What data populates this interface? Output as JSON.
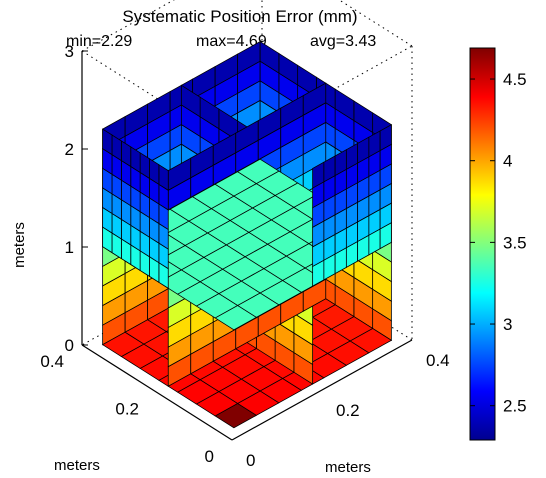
{
  "chart_data": {
    "type": "heatmap",
    "title": "Systematic Position Error (mm)",
    "subtitle": {
      "min": "min=2.29",
      "max": "max=4.69",
      "avg": "avg=3.43"
    },
    "stats": {
      "min": 2.29,
      "max": 4.69,
      "avg": 3.43
    },
    "zlabel": "meters",
    "xlabel": "meters",
    "ylabel": "meters",
    "z_ticks": [
      "0",
      "1",
      "2",
      "3"
    ],
    "x_ticks": [
      "0.4",
      "0.2",
      "0"
    ],
    "y_ticks": [
      "0",
      "0.2",
      "0.4"
    ],
    "xlim": [
      0,
      0.4
    ],
    "ylim": [
      0,
      0.4
    ],
    "zlim": [
      0,
      3
    ],
    "cube": {
      "z_range_m": [
        0,
        2.2
      ],
      "horizontal_slice_z_m": 1.0,
      "grid_cells_per_face_horizontal": 7,
      "grid_cells_vertical": 11,
      "error_by_height_mm": [
        {
          "z": 0.0,
          "value": 4.3
        },
        {
          "z": 0.2,
          "value": 4.1
        },
        {
          "z": 0.4,
          "value": 3.95
        },
        {
          "z": 0.6,
          "value": 3.8
        },
        {
          "z": 0.8,
          "value": 3.6
        },
        {
          "z": 1.0,
          "value": 3.35
        },
        {
          "z": 1.2,
          "value": 3.15
        },
        {
          "z": 1.4,
          "value": 3.0
        },
        {
          "z": 1.6,
          "value": 2.85
        },
        {
          "z": 1.8,
          "value": 2.65
        },
        {
          "z": 2.0,
          "value": 2.45
        },
        {
          "z": 2.2,
          "value": 2.35
        }
      ],
      "floor_corner_value_mm": 4.69
    },
    "colorbar": {
      "colormap": "jet",
      "range": [
        2.29,
        4.69
      ],
      "ticks": [
        {
          "value": 2.5,
          "label": "2.5"
        },
        {
          "value": 3.0,
          "label": "3"
        },
        {
          "value": 3.5,
          "label": "3.5"
        },
        {
          "value": 4.0,
          "label": "4"
        },
        {
          "value": 4.5,
          "label": "4.5"
        }
      ]
    },
    "grid": true,
    "legend": "colorbar-right"
  }
}
